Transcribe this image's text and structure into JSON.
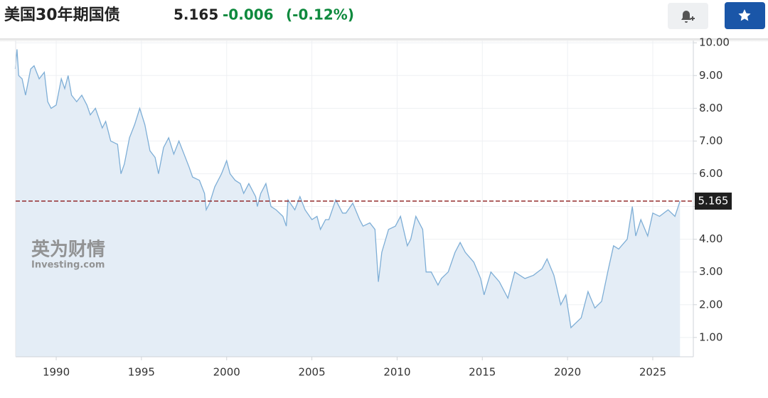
{
  "header": {
    "title": "美国30年期国债",
    "price": "5.165",
    "change": "-0.006",
    "change_percent": "(-0.12%)"
  },
  "chart_data": {
    "type": "area",
    "watermark": [
      "英为财情",
      "Investing.com"
    ],
    "x": [
      1987.6,
      1987.7,
      1987.8,
      1988.0,
      1988.2,
      1988.5,
      1988.7,
      1989.0,
      1989.3,
      1989.5,
      1989.7,
      1990.0,
      1990.3,
      1990.5,
      1990.7,
      1990.9,
      1991.2,
      1991.5,
      1991.8,
      1992.0,
      1992.3,
      1992.7,
      1992.9,
      1993.2,
      1993.6,
      1993.8,
      1994.0,
      1994.3,
      1994.6,
      1994.9,
      1995.2,
      1995.5,
      1995.8,
      1996.0,
      1996.3,
      1996.6,
      1996.9,
      1997.2,
      1997.5,
      1997.8,
      1998.0,
      1998.4,
      1998.7,
      1998.8,
      1999.0,
      1999.3,
      1999.7,
      2000.0,
      2000.2,
      2000.5,
      2000.8,
      2001.0,
      2001.3,
      2001.7,
      2001.8,
      2002.0,
      2002.3,
      2002.6,
      2002.9,
      2003.3,
      2003.5,
      2003.6,
      2004.0,
      2004.3,
      2004.6,
      2005.0,
      2005.3,
      2005.5,
      2005.8,
      2006.0,
      2006.4,
      2006.8,
      2007.0,
      2007.4,
      2007.8,
      2008.0,
      2008.4,
      2008.7,
      2008.9,
      2009.1,
      2009.5,
      2009.9,
      2010.2,
      2010.6,
      2010.8,
      2011.1,
      2011.5,
      2011.7,
      2012.0,
      2012.4,
      2012.6,
      2013.0,
      2013.4,
      2013.7,
      2014.0,
      2014.5,
      2014.9,
      2015.1,
      2015.5,
      2016.0,
      2016.5,
      2016.9,
      2017.5,
      2018.0,
      2018.5,
      2018.8,
      2019.2,
      2019.6,
      2019.9,
      2020.2,
      2020.4,
      2020.8,
      2021.2,
      2021.6,
      2022.0,
      2022.4,
      2022.7,
      2023.0,
      2023.5,
      2023.8,
      2024.0,
      2024.3,
      2024.7,
      2025.0,
      2025.4,
      2025.9,
      2026.3,
      2026.6
    ],
    "values": [
      9.2,
      9.8,
      9.0,
      8.9,
      8.4,
      9.2,
      9.3,
      8.9,
      9.1,
      8.2,
      8.0,
      8.1,
      8.9,
      8.6,
      9.0,
      8.4,
      8.2,
      8.4,
      8.1,
      7.8,
      8.0,
      7.4,
      7.6,
      7.0,
      6.9,
      6.0,
      6.3,
      7.1,
      7.5,
      8.0,
      7.5,
      6.7,
      6.5,
      6.0,
      6.8,
      7.1,
      6.6,
      7.0,
      6.6,
      6.2,
      5.9,
      5.8,
      5.4,
      4.9,
      5.1,
      5.6,
      6.0,
      6.4,
      6.0,
      5.8,
      5.7,
      5.4,
      5.7,
      5.3,
      5.0,
      5.4,
      5.7,
      5.0,
      4.9,
      4.7,
      4.4,
      5.2,
      4.9,
      5.3,
      4.9,
      4.6,
      4.7,
      4.3,
      4.6,
      4.6,
      5.2,
      4.8,
      4.8,
      5.1,
      4.6,
      4.4,
      4.5,
      4.3,
      2.7,
      3.6,
      4.3,
      4.4,
      4.7,
      3.8,
      4.0,
      4.7,
      4.3,
      3.0,
      3.0,
      2.6,
      2.8,
      3.0,
      3.6,
      3.9,
      3.6,
      3.3,
      2.8,
      2.3,
      3.0,
      2.7,
      2.2,
      3.0,
      2.8,
      2.9,
      3.1,
      3.4,
      2.9,
      2.0,
      2.3,
      1.3,
      1.4,
      1.6,
      2.4,
      1.9,
      2.1,
      3.1,
      3.8,
      3.7,
      4.0,
      5.0,
      4.1,
      4.6,
      4.1,
      4.8,
      4.7,
      4.9,
      4.7,
      5.165
    ],
    "color": "#7eaed6",
    "fill": "#e4edf6",
    "reference_line": 5.165,
    "reference_label": "5.165",
    "reference_color": "#8b1a1a",
    "xlim": [
      1987.62,
      2027.38
    ],
    "xticks": [
      1990,
      1995,
      2000,
      2005,
      2010,
      2015,
      2020,
      2025
    ],
    "ylim": [
      0.41,
      10.07
    ],
    "yticks": [
      {
        "value": 1,
        "label": "1.00"
      },
      {
        "value": 2,
        "label": "2.00"
      },
      {
        "value": 3,
        "label": "3.00"
      },
      {
        "value": 4,
        "label": "4.00"
      },
      {
        "value": 5,
        "label": "5.00"
      },
      {
        "value": 6,
        "label": "6.00"
      },
      {
        "value": 7,
        "label": "7.00"
      },
      {
        "value": 8,
        "label": "8.00"
      },
      {
        "value": 9,
        "label": "9.00"
      },
      {
        "value": 10,
        "label": "10.00"
      }
    ],
    "y_axis_side": "right",
    "grid": true
  }
}
